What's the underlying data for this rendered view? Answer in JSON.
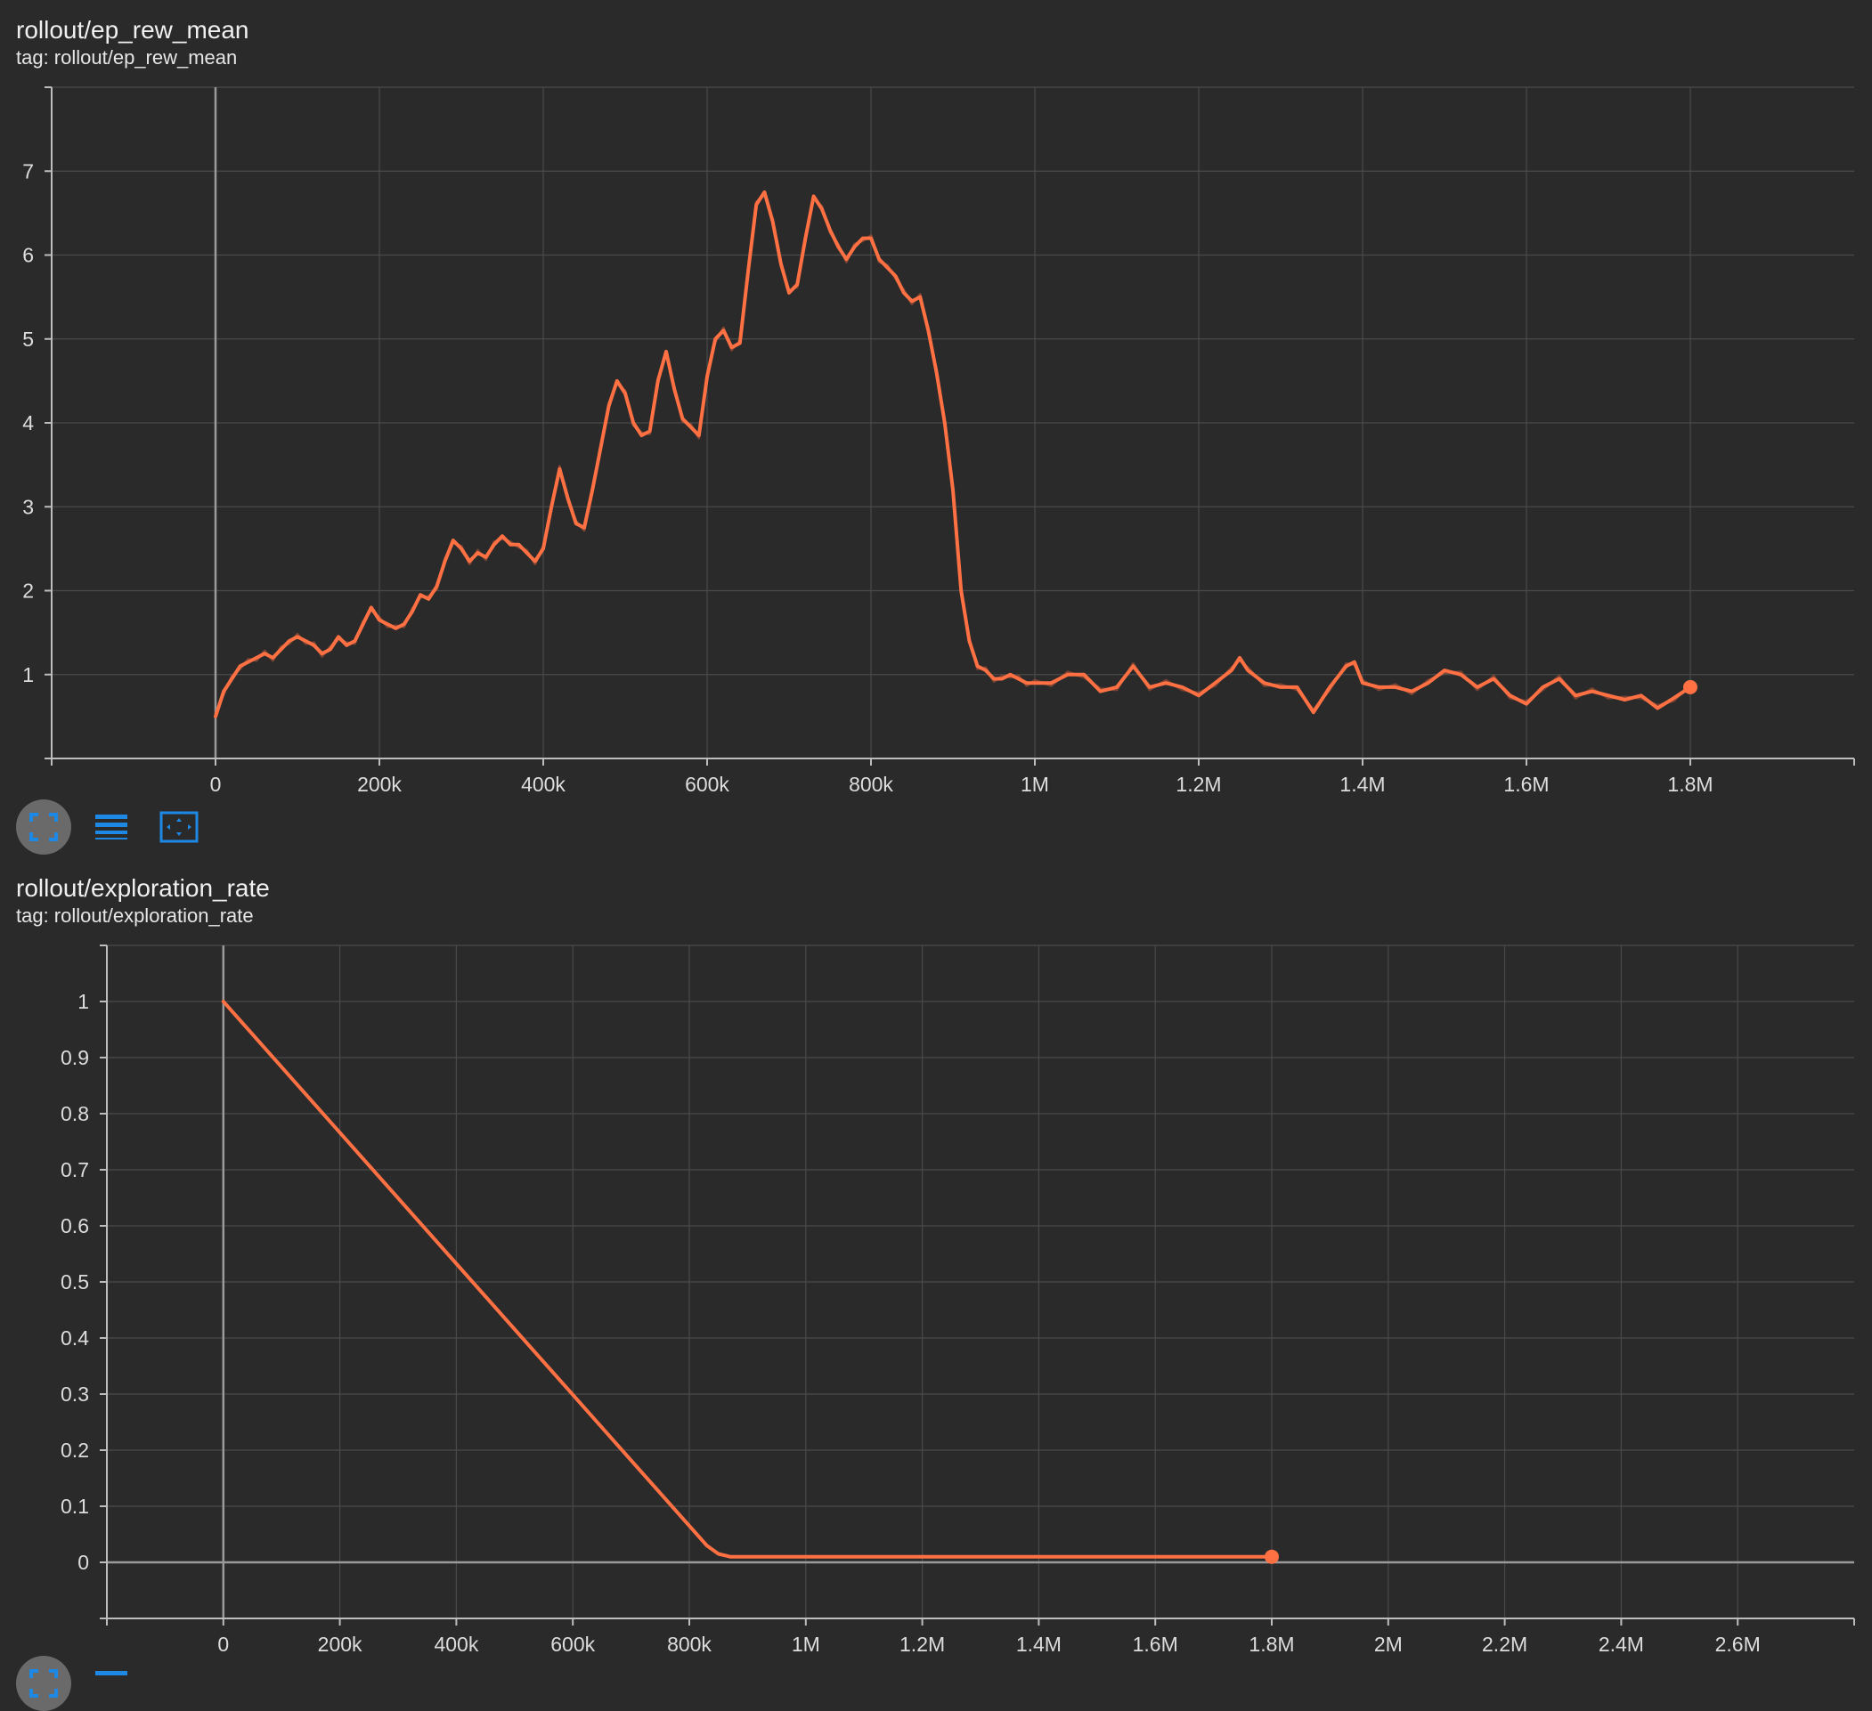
{
  "colors": {
    "background": "#2a2a2b",
    "grid": "#4a4a4a",
    "axis": "#bdbdbd",
    "zero_line": "#9a9a9a",
    "series": "#ff7043",
    "series_raw": "#b9583a",
    "icon_blue": "#1e88e5",
    "active_button": "#6a6a6a"
  },
  "toolbar": {
    "icons": [
      "fullscreen-icon",
      "data-lines-icon",
      "fit-domain-icon"
    ]
  },
  "charts": [
    {
      "title": "rollout/ep_rew_mean",
      "tag": "tag: rollout/ep_rew_mean"
    },
    {
      "title": "rollout/exploration_rate",
      "tag": "tag: rollout/exploration_rate"
    }
  ],
  "chart_data": [
    {
      "type": "line",
      "title": "rollout/ep_rew_mean",
      "subtitle": "tag: rollout/ep_rew_mean",
      "xlabel": "",
      "ylabel": "",
      "xlim": [
        -200000,
        2000000
      ],
      "ylim": [
        0,
        8
      ],
      "grid": true,
      "x_ticks": [
        0,
        200000,
        400000,
        600000,
        800000,
        1000000,
        1200000,
        1400000,
        1600000,
        1800000
      ],
      "x_tick_labels": [
        "0",
        "200k",
        "400k",
        "600k",
        "800k",
        "1M",
        "1.2M",
        "1.4M",
        "1.6M",
        "1.8M"
      ],
      "y_ticks": [
        1,
        2,
        3,
        4,
        5,
        6,
        7
      ],
      "y_tick_labels": [
        "1",
        "2",
        "3",
        "4",
        "5",
        "6",
        "7"
      ],
      "series": [
        {
          "x": [
            0,
            10000,
            20000,
            30000,
            40000,
            50000,
            60000,
            70000,
            80000,
            90000,
            100000,
            110000,
            120000,
            130000,
            140000,
            150000,
            160000,
            170000,
            180000,
            190000,
            200000,
            210000,
            220000,
            230000,
            240000,
            250000,
            260000,
            270000,
            280000,
            290000,
            300000,
            310000,
            320000,
            330000,
            340000,
            350000,
            360000,
            370000,
            380000,
            390000,
            400000,
            410000,
            420000,
            430000,
            440000,
            450000,
            460000,
            470000,
            480000,
            490000,
            500000,
            510000,
            520000,
            530000,
            540000,
            550000,
            560000,
            570000,
            580000,
            590000,
            600000,
            610000,
            620000,
            630000,
            640000,
            650000,
            660000,
            670000,
            680000,
            690000,
            700000,
            710000,
            720000,
            730000,
            740000,
            750000,
            760000,
            770000,
            780000,
            790000,
            800000,
            810000,
            820000,
            830000,
            840000,
            850000,
            860000,
            870000,
            880000,
            890000,
            900000,
            910000,
            920000,
            930000,
            940000,
            950000,
            960000,
            970000,
            980000,
            990000,
            1000000,
            1020000,
            1040000,
            1060000,
            1080000,
            1100000,
            1120000,
            1140000,
            1160000,
            1180000,
            1200000,
            1220000,
            1240000,
            1250000,
            1260000,
            1280000,
            1300000,
            1320000,
            1340000,
            1360000,
            1380000,
            1390000,
            1400000,
            1420000,
            1440000,
            1460000,
            1480000,
            1500000,
            1520000,
            1540000,
            1560000,
            1580000,
            1600000,
            1620000,
            1640000,
            1660000,
            1680000,
            1700000,
            1720000,
            1740000,
            1760000,
            1780000,
            1800000
          ],
          "y": [
            0.5,
            0.8,
            0.95,
            1.1,
            1.15,
            1.2,
            1.25,
            1.2,
            1.3,
            1.4,
            1.45,
            1.4,
            1.35,
            1.25,
            1.3,
            1.45,
            1.35,
            1.4,
            1.6,
            1.8,
            1.65,
            1.6,
            1.55,
            1.6,
            1.75,
            1.95,
            1.9,
            2.05,
            2.35,
            2.6,
            2.5,
            2.35,
            2.45,
            2.4,
            2.55,
            2.65,
            2.55,
            2.55,
            2.45,
            2.35,
            2.5,
            3.0,
            3.45,
            3.1,
            2.8,
            2.75,
            3.2,
            3.7,
            4.2,
            4.5,
            4.35,
            4.0,
            3.85,
            3.9,
            4.5,
            4.85,
            4.4,
            4.05,
            3.95,
            3.85,
            4.55,
            5.0,
            5.1,
            4.9,
            4.95,
            5.8,
            6.6,
            6.75,
            6.4,
            5.9,
            5.55,
            5.65,
            6.2,
            6.7,
            6.55,
            6.3,
            6.1,
            5.95,
            6.1,
            6.2,
            6.2,
            5.95,
            5.85,
            5.75,
            5.55,
            5.45,
            5.5,
            5.1,
            4.6,
            4.0,
            3.2,
            2.0,
            1.4,
            1.1,
            1.05,
            0.95,
            0.95,
            1.0,
            0.95,
            0.9,
            0.9,
            0.9,
            1.0,
            1.0,
            0.8,
            0.85,
            1.1,
            0.85,
            0.9,
            0.85,
            0.75,
            0.9,
            1.05,
            1.2,
            1.05,
            0.9,
            0.85,
            0.85,
            0.55,
            0.85,
            1.1,
            1.15,
            0.9,
            0.85,
            0.85,
            0.8,
            0.9,
            1.05,
            1.0,
            0.85,
            0.95,
            0.75,
            0.65,
            0.85,
            0.95,
            0.75,
            0.8,
            0.75,
            0.7,
            0.75,
            0.6,
            0.72,
            0.85
          ]
        }
      ]
    },
    {
      "type": "line",
      "title": "rollout/exploration_rate",
      "subtitle": "tag: rollout/exploration_rate",
      "xlabel": "",
      "ylabel": "",
      "xlim": [
        -200000,
        2800000
      ],
      "ylim": [
        -0.1,
        1.1
      ],
      "grid": true,
      "x_ticks": [
        0,
        200000,
        400000,
        600000,
        800000,
        1000000,
        1200000,
        1400000,
        1600000,
        1800000,
        2000000,
        2200000,
        2400000,
        2600000
      ],
      "x_tick_labels": [
        "0",
        "200k",
        "400k",
        "600k",
        "800k",
        "1M",
        "1.2M",
        "1.4M",
        "1.6M",
        "1.8M",
        "2M",
        "2.2M",
        "2.4M",
        "2.6M"
      ],
      "y_ticks": [
        0,
        0.1,
        0.2,
        0.3,
        0.4,
        0.5,
        0.6,
        0.7,
        0.8,
        0.9,
        1
      ],
      "y_tick_labels": [
        "0",
        "0.1",
        "0.2",
        "0.3",
        "0.4",
        "0.5",
        "0.6",
        "0.7",
        "0.8",
        "0.9",
        "1"
      ],
      "series": [
        {
          "x": [
            0,
            830000,
            850000,
            870000,
            900000,
            1800000
          ],
          "y": [
            1.0,
            0.03,
            0.015,
            0.01,
            0.01,
            0.01
          ]
        }
      ]
    }
  ]
}
